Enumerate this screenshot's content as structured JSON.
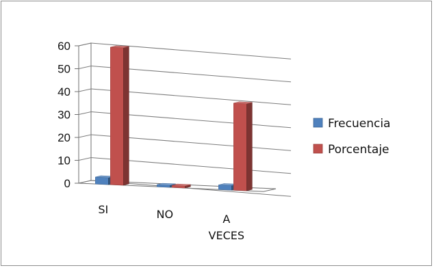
{
  "chart_data": {
    "type": "bar",
    "categories": [
      "SI",
      "NO",
      "A VECES"
    ],
    "category_lines": [
      [
        "SI"
      ],
      [
        "NO"
      ],
      [
        "A",
        "VECES"
      ]
    ],
    "series": [
      {
        "name": "Frecuencia",
        "values": [
          3,
          0,
          2
        ],
        "color": "#4f81bd"
      },
      {
        "name": "Porcentaje",
        "values": [
          60,
          0,
          38
        ],
        "color": "#c0504d"
      }
    ],
    "ylim": [
      0,
      60
    ],
    "yticks": [
      "0",
      "10",
      "20",
      "30",
      "40",
      "50",
      "60"
    ],
    "grid": true,
    "legend_position": "right",
    "three_d": true,
    "title": "",
    "xlabel": "",
    "ylabel": ""
  }
}
